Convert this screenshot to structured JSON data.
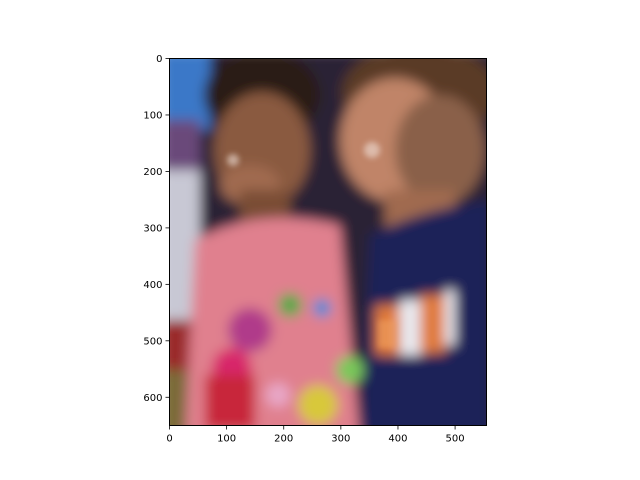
{
  "figure": {
    "background": "#ffffff",
    "axes_color": "#000000"
  },
  "image_axes": {
    "x_ticks": [
      {
        "value": 0,
        "label": "0"
      },
      {
        "value": 100,
        "label": "100"
      },
      {
        "value": 200,
        "label": "200"
      },
      {
        "value": 300,
        "label": "300"
      },
      {
        "value": 400,
        "label": "400"
      },
      {
        "value": 500,
        "label": "500"
      }
    ],
    "y_ticks": [
      {
        "value": 0,
        "label": "0"
      },
      {
        "value": 100,
        "label": "100"
      },
      {
        "value": 200,
        "label": "200"
      },
      {
        "value": 300,
        "label": "300"
      },
      {
        "value": 400,
        "label": "400"
      },
      {
        "value": 500,
        "label": "500"
      },
      {
        "value": 600,
        "label": "600"
      }
    ],
    "x_range": [
      0,
      555
    ],
    "y_range": [
      0,
      650
    ],
    "y_inverted": true
  },
  "photo": {
    "subject": "blurred photo of two young children laughing side by side",
    "colors": {
      "top_left_blue": "#3a78c8",
      "dark_bg": "#1c1a28",
      "skin_left": "#8a5a40",
      "hair_left": "#2a1c18",
      "skin_right": "#c08468",
      "hair_right": "#5a3a28",
      "pink_shirt": "#e0808e",
      "navy_shirt": "#1c2458",
      "orange_letters": "#e07a3a",
      "red_item": "#c8283a",
      "yellow_item": "#d8c83a",
      "green_item": "#5aa84a",
      "white_left": "#d8d8e0",
      "lap": "#7a6a38"
    }
  }
}
